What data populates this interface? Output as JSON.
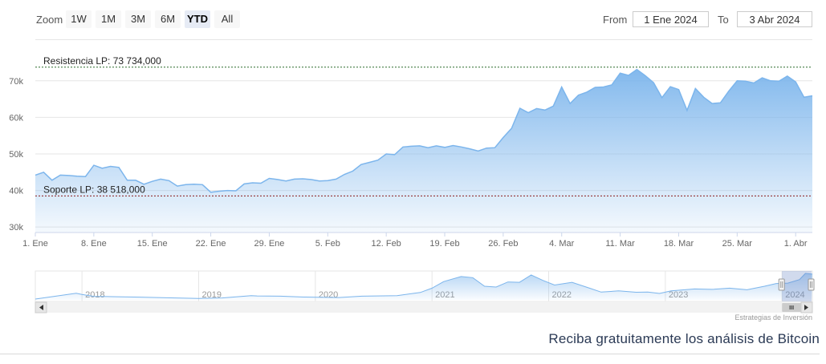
{
  "range_selector": {
    "zoom_label": "Zoom",
    "buttons": [
      "1W",
      "1M",
      "3M",
      "6M",
      "YTD",
      "All"
    ],
    "active": "YTD",
    "from_label": "From",
    "from_value": "1 Ene 2024",
    "to_label": "To",
    "to_value": "3 Abr 2024"
  },
  "credits": "Estrategias de Inversión",
  "promo": "Reciba gratuitamente los análisis de Bitcoin",
  "colors": {
    "line": "#7cb5ec",
    "area_top": "#7cb5ec",
    "resistance": "#2d6b2d",
    "support": "#8b1a1a"
  },
  "chart_data": {
    "type": "area",
    "x_tick_labels": [
      "1. Ene",
      "8. Ene",
      "15. Ene",
      "22. Ene",
      "29. Ene",
      "5. Feb",
      "12. Feb",
      "19. Feb",
      "26. Feb",
      "4. Mar",
      "11. Mar",
      "18. Mar",
      "25. Mar",
      "1. Abr"
    ],
    "y_tick_labels": [
      "30k",
      "40k",
      "50k",
      "60k",
      "70k"
    ],
    "y_ticks": [
      30000,
      40000,
      50000,
      60000,
      70000
    ],
    "ylim": [
      28500,
      75000
    ],
    "xlim": [
      "2024-01-01",
      "2024-04-03"
    ],
    "plot_lines": [
      {
        "label": "Resistencia LP: 73 734,000",
        "value": 73734,
        "color": "#2d6b2d"
      },
      {
        "label": "Soporte LP: 38 518,000",
        "value": 38518,
        "color": "#8b1a1a"
      }
    ],
    "series": [
      {
        "x": [
          "2024-01-01",
          "2024-01-02",
          "2024-01-03",
          "2024-01-04",
          "2024-01-05",
          "2024-01-06",
          "2024-01-07",
          "2024-01-08",
          "2024-01-09",
          "2024-01-10",
          "2024-01-11",
          "2024-01-12",
          "2024-01-13",
          "2024-01-14",
          "2024-01-15",
          "2024-01-16",
          "2024-01-17",
          "2024-01-18",
          "2024-01-19",
          "2024-01-20",
          "2024-01-21",
          "2024-01-22",
          "2024-01-23",
          "2024-01-24",
          "2024-01-25",
          "2024-01-26",
          "2024-01-27",
          "2024-01-28",
          "2024-01-29",
          "2024-01-30",
          "2024-01-31",
          "2024-02-01",
          "2024-02-02",
          "2024-02-03",
          "2024-02-04",
          "2024-02-05",
          "2024-02-06",
          "2024-02-07",
          "2024-02-08",
          "2024-02-09",
          "2024-02-10",
          "2024-02-11",
          "2024-02-12",
          "2024-02-13",
          "2024-02-14",
          "2024-02-15",
          "2024-02-16",
          "2024-02-17",
          "2024-02-18",
          "2024-02-19",
          "2024-02-20",
          "2024-02-21",
          "2024-02-22",
          "2024-02-23",
          "2024-02-24",
          "2024-02-25",
          "2024-02-26",
          "2024-02-27",
          "2024-02-28",
          "2024-02-29",
          "2024-03-01",
          "2024-03-02",
          "2024-03-03",
          "2024-03-04",
          "2024-03-05",
          "2024-03-06",
          "2024-03-07",
          "2024-03-08",
          "2024-03-09",
          "2024-03-10",
          "2024-03-11",
          "2024-03-12",
          "2024-03-13",
          "2024-03-14",
          "2024-03-15",
          "2024-03-16",
          "2024-03-17",
          "2024-03-18",
          "2024-03-19",
          "2024-03-20",
          "2024-03-21",
          "2024-03-22",
          "2024-03-23",
          "2024-03-24",
          "2024-03-25",
          "2024-03-26",
          "2024-03-27",
          "2024-03-28",
          "2024-03-29",
          "2024-03-30",
          "2024-03-31",
          "2024-04-01",
          "2024-04-02",
          "2024-04-03"
        ],
        "values": [
          44200,
          45000,
          42800,
          44200,
          44100,
          43900,
          43800,
          46900,
          46100,
          46600,
          46300,
          42800,
          42800,
          41700,
          42500,
          43100,
          42700,
          41200,
          41600,
          41700,
          41600,
          39500,
          39800,
          40000,
          39900,
          41800,
          42100,
          42000,
          43300,
          43000,
          42600,
          43100,
          43200,
          43000,
          42600,
          42700,
          43100,
          44400,
          45300,
          47100,
          47700,
          48300,
          50000,
          49800,
          51900,
          52100,
          52200,
          51700,
          52200,
          51800,
          52300,
          51900,
          51400,
          50800,
          51600,
          51700,
          54500,
          57000,
          62500,
          61300,
          62400,
          62000,
          63100,
          68300,
          63800,
          66100,
          66900,
          68200,
          68300,
          68900,
          72100,
          71500,
          73100,
          71400,
          69500,
          65400,
          68400,
          67600,
          61900,
          67900,
          65500,
          63800,
          64000,
          67200,
          70000,
          69900,
          69400,
          70800,
          70000,
          69900,
          71300,
          69700,
          65500,
          65900
        ]
      }
    ]
  },
  "navigator": {
    "year_labels": [
      "2018",
      "2019",
      "2020",
      "2021",
      "2022",
      "2023",
      "2024"
    ],
    "start_year": 2017.6,
    "end_year": 2024.26,
    "selection": [
      2024.0,
      2024.26
    ],
    "series": [
      [
        2017.6,
        2000
      ],
      [
        2017.95,
        17000
      ],
      [
        2018.0,
        14000
      ],
      [
        2018.1,
        9000
      ],
      [
        2018.3,
        8000
      ],
      [
        2018.5,
        7000
      ],
      [
        2018.8,
        5000
      ],
      [
        2019.0,
        3800
      ],
      [
        2019.2,
        5000
      ],
      [
        2019.45,
        11000
      ],
      [
        2019.5,
        10000
      ],
      [
        2019.7,
        9500
      ],
      [
        2019.9,
        7200
      ],
      [
        2020.2,
        6000
      ],
      [
        2020.4,
        9500
      ],
      [
        2020.7,
        11000
      ],
      [
        2020.9,
        19000
      ],
      [
        2021.0,
        30000
      ],
      [
        2021.1,
        47000
      ],
      [
        2021.25,
        60000
      ],
      [
        2021.35,
        57000
      ],
      [
        2021.45,
        35000
      ],
      [
        2021.55,
        33000
      ],
      [
        2021.65,
        46000
      ],
      [
        2021.75,
        45000
      ],
      [
        2021.85,
        64000
      ],
      [
        2021.95,
        50000
      ],
      [
        2022.05,
        38000
      ],
      [
        2022.2,
        45000
      ],
      [
        2022.35,
        30000
      ],
      [
        2022.45,
        20000
      ],
      [
        2022.6,
        23000
      ],
      [
        2022.75,
        19500
      ],
      [
        2022.85,
        20000
      ],
      [
        2022.95,
        16500
      ],
      [
        2023.05,
        23000
      ],
      [
        2023.25,
        28000
      ],
      [
        2023.4,
        27000
      ],
      [
        2023.55,
        30000
      ],
      [
        2023.7,
        26000
      ],
      [
        2023.85,
        35000
      ],
      [
        2023.95,
        42000
      ],
      [
        2024.05,
        43000
      ],
      [
        2024.15,
        52000
      ],
      [
        2024.2,
        68000
      ],
      [
        2024.26,
        66000
      ]
    ],
    "ylim": [
      0,
      70000
    ]
  }
}
